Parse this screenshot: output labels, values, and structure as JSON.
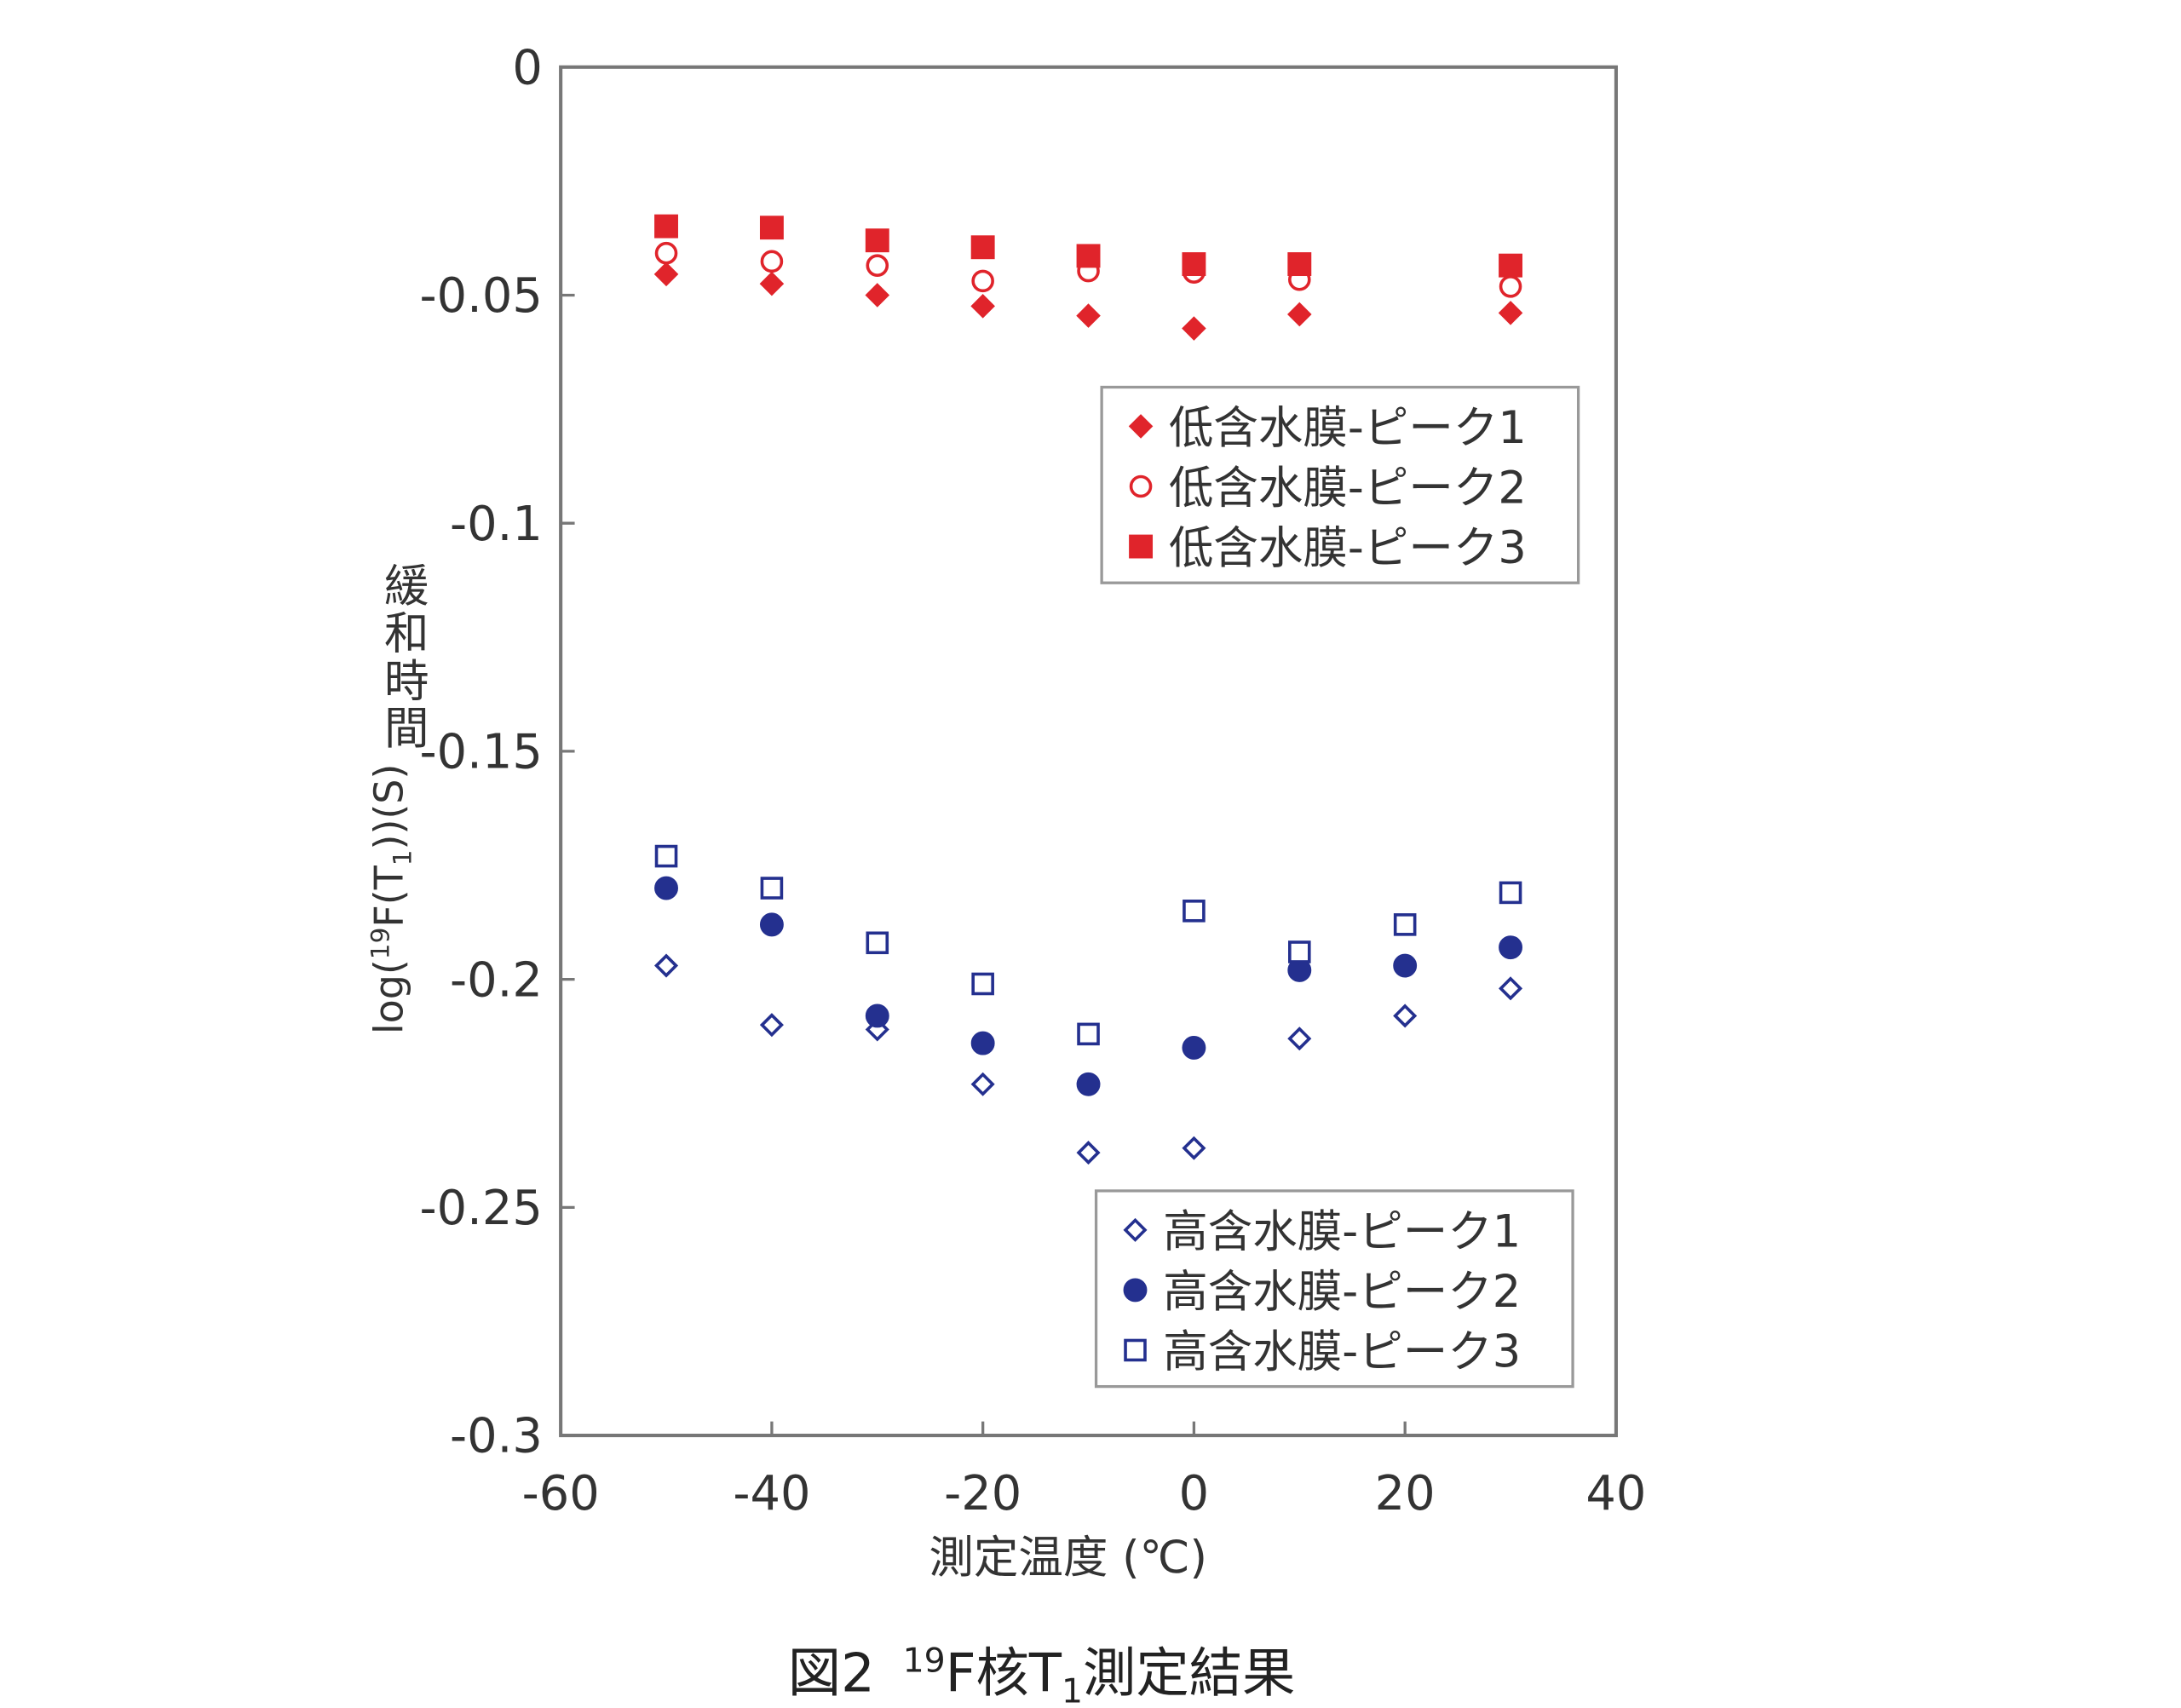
{
  "chart_data": {
    "type": "scatter",
    "caption": "図2 ¹⁹F核T₁測定結果",
    "caption_parts": {
      "prefix": "図2",
      "sup": "19",
      "mid": "F核T",
      "sub": "1",
      "suffix": "測定結果"
    },
    "xlabel": "測定温度 (℃)",
    "ylabel_vertical": "緩和時間",
    "ylabel_parts": {
      "a": "log(",
      "sup": "19",
      "b": "F(T",
      "sub": "1",
      "c": "))(S)"
    },
    "xlim": [
      -60,
      40
    ],
    "ylim": [
      -0.3,
      0
    ],
    "xticks": [
      "-60",
      "-40",
      "-20",
      "0",
      "20",
      "40"
    ],
    "xtick_values": [
      -60,
      -40,
      -20,
      0,
      20,
      40
    ],
    "yticks": [
      "0",
      "-0.05",
      "-0.1",
      "-0.15",
      "-0.2",
      "-0.25",
      "-0.3"
    ],
    "ytick_values": [
      0,
      -0.05,
      -0.1,
      -0.15,
      -0.2,
      -0.25,
      -0.3
    ],
    "grid": false,
    "legends": [
      {
        "placement": "upper-right",
        "entries": [
          0,
          1,
          2
        ]
      },
      {
        "placement": "lower-right",
        "entries": [
          3,
          4,
          5
        ]
      }
    ],
    "series": [
      {
        "name": "低含水膜-ピーク1",
        "marker": "diamond-filled",
        "color": "#e0242b",
        "x": [
          -50,
          -40,
          -30,
          -20,
          -10,
          0,
          10,
          30
        ],
        "y": [
          -0.0454,
          -0.0475,
          -0.05,
          -0.0524,
          -0.0545,
          -0.0573,
          -0.0542,
          -0.0539
        ]
      },
      {
        "name": "低含水膜-ピーク2",
        "marker": "circle-open",
        "color": "#e0242b",
        "x": [
          -50,
          -40,
          -30,
          -20,
          -10,
          0,
          10,
          30
        ],
        "y": [
          -0.0408,
          -0.0426,
          -0.0435,
          -0.0469,
          -0.0447,
          -0.045,
          -0.0466,
          -0.0481
        ]
      },
      {
        "name": "低含水膜-ピーク3",
        "marker": "square-filled",
        "color": "#e0242b",
        "x": [
          -50,
          -40,
          -30,
          -20,
          -10,
          0,
          10,
          30
        ],
        "y": [
          -0.0349,
          -0.0352,
          -0.038,
          -0.0395,
          -0.0414,
          -0.0432,
          -0.0432,
          -0.0435
        ]
      },
      {
        "name": "高含水膜-ピーク1",
        "marker": "diamond-open",
        "color": "#24308f",
        "x": [
          -50,
          -40,
          -30,
          -20,
          -10,
          0,
          10,
          20,
          30
        ],
        "y": [
          -0.197,
          -0.21,
          -0.211,
          -0.223,
          -0.238,
          -0.237,
          -0.213,
          -0.208,
          -0.202
        ]
      },
      {
        "name": "高含水膜-ピーク2",
        "marker": "circle-filled",
        "color": "#24308f",
        "x": [
          -50,
          -40,
          -30,
          -20,
          -10,
          0,
          10,
          20,
          30
        ],
        "y": [
          -0.18,
          -0.188,
          -0.208,
          -0.214,
          -0.223,
          -0.215,
          -0.198,
          -0.197,
          -0.193
        ]
      },
      {
        "name": "高含水膜-ピーク3",
        "marker": "square-open",
        "color": "#24308f",
        "x": [
          -50,
          -40,
          -30,
          -20,
          -10,
          0,
          10,
          20,
          30
        ],
        "y": [
          -0.173,
          -0.18,
          -0.192,
          -0.201,
          -0.212,
          -0.185,
          -0.194,
          -0.188,
          -0.181
        ]
      }
    ]
  }
}
